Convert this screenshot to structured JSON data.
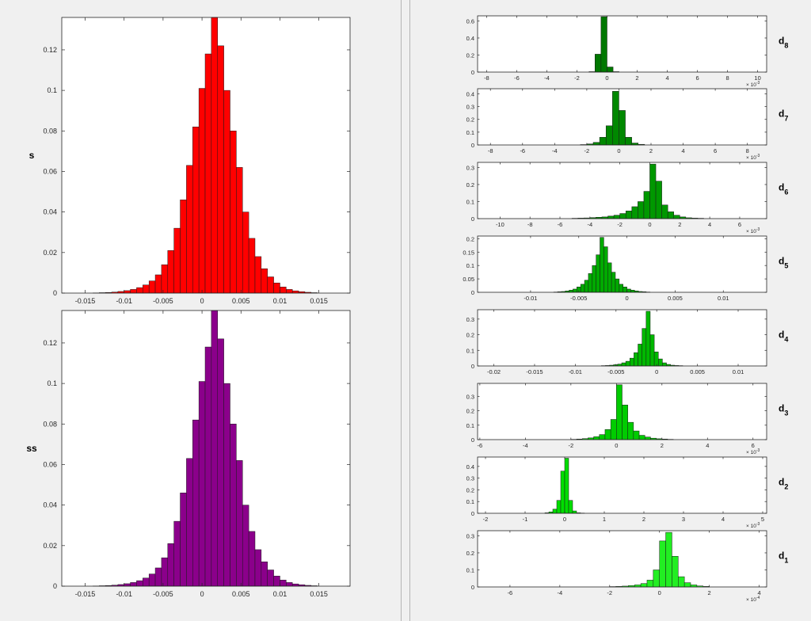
{
  "chart_data": [
    {
      "id": "s",
      "type": "bar",
      "ylabel": "s",
      "color": "#ff0000",
      "xlim": [
        -0.018,
        0.019
      ],
      "ylim": [
        0,
        0.136
      ],
      "xticks": [
        -0.015,
        -0.01,
        -0.005,
        0,
        0.005,
        0.01,
        0.015
      ],
      "xtick_labels": [
        "-0.015",
        "-0.01",
        "-0.005",
        "0",
        "0.005",
        "0.01",
        "0.015"
      ],
      "yticks": [
        0,
        0.02,
        0.04,
        0.06,
        0.08,
        0.1,
        0.12
      ],
      "ytick_labels": [
        "0",
        "0.02",
        "0.04",
        "0.06",
        "0.08",
        "0.1",
        "0.12"
      ],
      "bin_start": -0.014,
      "bin_width": 0.0008,
      "values": [
        0.0001,
        0.0002,
        0.0003,
        0.0005,
        0.0008,
        0.0012,
        0.0018,
        0.0027,
        0.004,
        0.006,
        0.009,
        0.014,
        0.021,
        0.032,
        0.046,
        0.063,
        0.082,
        0.101,
        0.118,
        0.136,
        0.122,
        0.1,
        0.08,
        0.062,
        0.04,
        0.027,
        0.018,
        0.012,
        0.008,
        0.005,
        0.003,
        0.0018,
        0.0011,
        0.0007,
        0.0004,
        0.0002
      ]
    },
    {
      "id": "ss",
      "type": "bar",
      "ylabel": "ss",
      "color": "#8b008b",
      "xlim": [
        -0.018,
        0.019
      ],
      "ylim": [
        0,
        0.136
      ],
      "xticks": [
        -0.015,
        -0.01,
        -0.005,
        0,
        0.005,
        0.01,
        0.015
      ],
      "xtick_labels": [
        "-0.015",
        "-0.01",
        "-0.005",
        "0",
        "0.005",
        "0.01",
        "0.015"
      ],
      "yticks": [
        0,
        0.02,
        0.04,
        0.06,
        0.08,
        0.1,
        0.12
      ],
      "ytick_labels": [
        "0",
        "0.02",
        "0.04",
        "0.06",
        "0.08",
        "0.1",
        "0.12"
      ],
      "bin_start": -0.014,
      "bin_width": 0.0008,
      "values": [
        0.0001,
        0.0002,
        0.0003,
        0.0005,
        0.0008,
        0.0012,
        0.0018,
        0.0027,
        0.004,
        0.006,
        0.009,
        0.014,
        0.021,
        0.032,
        0.046,
        0.063,
        0.082,
        0.101,
        0.118,
        0.136,
        0.122,
        0.1,
        0.08,
        0.062,
        0.04,
        0.027,
        0.018,
        0.012,
        0.008,
        0.005,
        0.003,
        0.0018,
        0.0011,
        0.0007,
        0.0004,
        0.0002
      ]
    },
    {
      "id": "d8",
      "type": "bar",
      "label": "d",
      "label_sub": "8",
      "color": "#007800",
      "xlim": [
        -8.6,
        10.6
      ],
      "ylim": [
        0,
        0.66
      ],
      "exponent": "× 10-3",
      "xticks": [
        -8,
        -6,
        -4,
        -2,
        0,
        2,
        4,
        6,
        8,
        10
      ],
      "xtick_labels": [
        "-8",
        "-6",
        "-4",
        "-2",
        "0",
        "2",
        "4",
        "6",
        "8",
        "10"
      ],
      "yticks": [
        0,
        0.2,
        0.4,
        0.6
      ],
      "ytick_labels": [
        "0",
        "0.2",
        "0.4",
        "0.6"
      ],
      "bin_start": -1.2,
      "bin_width": 0.4,
      "values": [
        0.005,
        0.21,
        0.65,
        0.06,
        0.005
      ]
    },
    {
      "id": "d7",
      "type": "bar",
      "label": "d",
      "label_sub": "7",
      "color": "#008800",
      "xlim": [
        -8.8,
        9.2
      ],
      "ylim": [
        0,
        0.44
      ],
      "exponent": "× 10-3",
      "xticks": [
        -8,
        -6,
        -4,
        -2,
        0,
        2,
        4,
        6,
        8
      ],
      "xtick_labels": [
        "-8",
        "-6",
        "-4",
        "-2",
        "0",
        "2",
        "4",
        "6",
        "8"
      ],
      "yticks": [
        0,
        0.1,
        0.2,
        0.3,
        0.4
      ],
      "ytick_labels": [
        "0",
        "0.1",
        "0.2",
        "0.3",
        "0.4"
      ],
      "bin_start": -2.4,
      "bin_width": 0.4,
      "values": [
        0.003,
        0.008,
        0.02,
        0.06,
        0.15,
        0.42,
        0.27,
        0.06,
        0.015,
        0.005
      ]
    },
    {
      "id": "d6",
      "type": "bar",
      "label": "d",
      "label_sub": "6",
      "color": "#009800",
      "xlim": [
        -11.5,
        7.8
      ],
      "ylim": [
        0,
        0.33
      ],
      "exponent": "× 10-3",
      "xticks": [
        -10,
        -8,
        -6,
        -4,
        -2,
        0,
        2,
        4,
        6
      ],
      "xtick_labels": [
        "-10",
        "-8",
        "-6",
        "-4",
        "-2",
        "0",
        "2",
        "4",
        "6"
      ],
      "yticks": [
        0,
        0.1,
        0.2,
        0.3
      ],
      "ytick_labels": [
        "0",
        "0.1",
        "0.2",
        "0.3"
      ],
      "bin_start": -5.2,
      "bin_width": 0.4,
      "values": [
        0.002,
        0.003,
        0.004,
        0.006,
        0.008,
        0.01,
        0.015,
        0.02,
        0.03,
        0.045,
        0.07,
        0.1,
        0.16,
        0.32,
        0.22,
        0.08,
        0.04,
        0.02,
        0.01,
        0.005,
        0.003,
        0.002
      ]
    },
    {
      "id": "d5",
      "type": "bar",
      "label": "d",
      "label_sub": "5",
      "color": "#00aa00",
      "xlim": [
        -0.0155,
        0.0145
      ],
      "ylim": [
        0,
        0.21
      ],
      "xticks": [
        -0.01,
        -0.005,
        0,
        0.005,
        0.01
      ],
      "xtick_labels": [
        "-0.01",
        "-0.005",
        "0",
        "0.005",
        "0.01"
      ],
      "yticks": [
        0,
        0.05,
        0.1,
        0.15,
        0.2
      ],
      "ytick_labels": [
        "0",
        "0.05",
        "0.1",
        "0.15",
        "0.2"
      ],
      "bin_start": -0.0076,
      "bin_width": 0.0004,
      "values": [
        0.001,
        0.002,
        0.003,
        0.005,
        0.008,
        0.012,
        0.02,
        0.03,
        0.045,
        0.07,
        0.1,
        0.14,
        0.205,
        0.17,
        0.11,
        0.075,
        0.05,
        0.03,
        0.02,
        0.012,
        0.008,
        0.005,
        0.003,
        0.002,
        0.001
      ]
    },
    {
      "id": "d4",
      "type": "bar",
      "label": "d",
      "label_sub": "4",
      "color": "#00b800",
      "xlim": [
        -0.022,
        0.0135
      ],
      "ylim": [
        0,
        0.36
      ],
      "xticks": [
        -0.02,
        -0.015,
        -0.01,
        -0.005,
        0,
        0.005,
        0.01
      ],
      "xtick_labels": [
        "-0.02",
        "-0.015",
        "-0.01",
        "-0.005",
        "0",
        "0.005",
        "0.01"
      ],
      "yticks": [
        0,
        0.1,
        0.2,
        0.3
      ],
      "ytick_labels": [
        "0",
        "0.1",
        "0.2",
        "0.3"
      ],
      "bin_start": -0.0068,
      "bin_width": 0.0005,
      "values": [
        0.002,
        0.003,
        0.005,
        0.008,
        0.012,
        0.02,
        0.03,
        0.05,
        0.085,
        0.14,
        0.24,
        0.35,
        0.2,
        0.09,
        0.045,
        0.02,
        0.01,
        0.005,
        0.003,
        0.002
      ]
    },
    {
      "id": "d3",
      "type": "bar",
      "label": "d",
      "label_sub": "3",
      "color": "#00cc00",
      "xlim": [
        -6.1,
        6.6
      ],
      "ylim": [
        0,
        0.39
      ],
      "exponent": "× 10-3",
      "xticks": [
        -6,
        -4,
        -2,
        0,
        2,
        4,
        6
      ],
      "xtick_labels": [
        "-6",
        "-4",
        "-2",
        "0",
        "2",
        "4",
        "6"
      ],
      "yticks": [
        0,
        0.1,
        0.2,
        0.3
      ],
      "ytick_labels": [
        "0",
        "0.1",
        "0.2",
        "0.3"
      ],
      "bin_start": -2.0,
      "bin_width": 0.25,
      "values": [
        0.002,
        0.004,
        0.007,
        0.012,
        0.02,
        0.035,
        0.07,
        0.14,
        0.38,
        0.24,
        0.12,
        0.06,
        0.03,
        0.018,
        0.01,
        0.006,
        0.004,
        0.002
      ]
    },
    {
      "id": "d2",
      "type": "bar",
      "label": "d",
      "label_sub": "2",
      "color": "#00dd00",
      "xlim": [
        -2.2,
        5.1
      ],
      "ylim": [
        0,
        0.48
      ],
      "exponent": "× 10-3",
      "xticks": [
        -2,
        -1,
        0,
        1,
        2,
        3,
        4,
        5
      ],
      "xtick_labels": [
        "-2",
        "-1",
        "0",
        "1",
        "2",
        "3",
        "4",
        "5"
      ],
      "yticks": [
        0,
        0.1,
        0.2,
        0.3,
        0.4
      ],
      "ytick_labels": [
        "0",
        "0.1",
        "0.2",
        "0.3",
        "0.4"
      ],
      "bin_start": -0.5,
      "bin_width": 0.1,
      "values": [
        0.004,
        0.012,
        0.035,
        0.11,
        0.36,
        0.47,
        0.11,
        0.02,
        0.004,
        0.002
      ]
    },
    {
      "id": "d1",
      "type": "bar",
      "label": "d",
      "label_sub": "1",
      "color": "#22ee22",
      "xlim": [
        -7.3,
        4.3
      ],
      "ylim": [
        0,
        0.33
      ],
      "exponent": "× 10-4",
      "xticks": [
        -6,
        -4,
        -2,
        0,
        2,
        4
      ],
      "xtick_labels": [
        "-6",
        "-4",
        "-2",
        "0",
        "2",
        "4"
      ],
      "yticks": [
        0,
        0.1,
        0.2,
        0.3
      ],
      "ytick_labels": [
        "0",
        "0.1",
        "0.2",
        "0.3"
      ],
      "bin_start": -2.0,
      "bin_width": 0.25,
      "values": [
        0.002,
        0.003,
        0.005,
        0.008,
        0.012,
        0.02,
        0.04,
        0.1,
        0.27,
        0.32,
        0.18,
        0.06,
        0.025,
        0.012,
        0.006,
        0.003
      ]
    }
  ]
}
